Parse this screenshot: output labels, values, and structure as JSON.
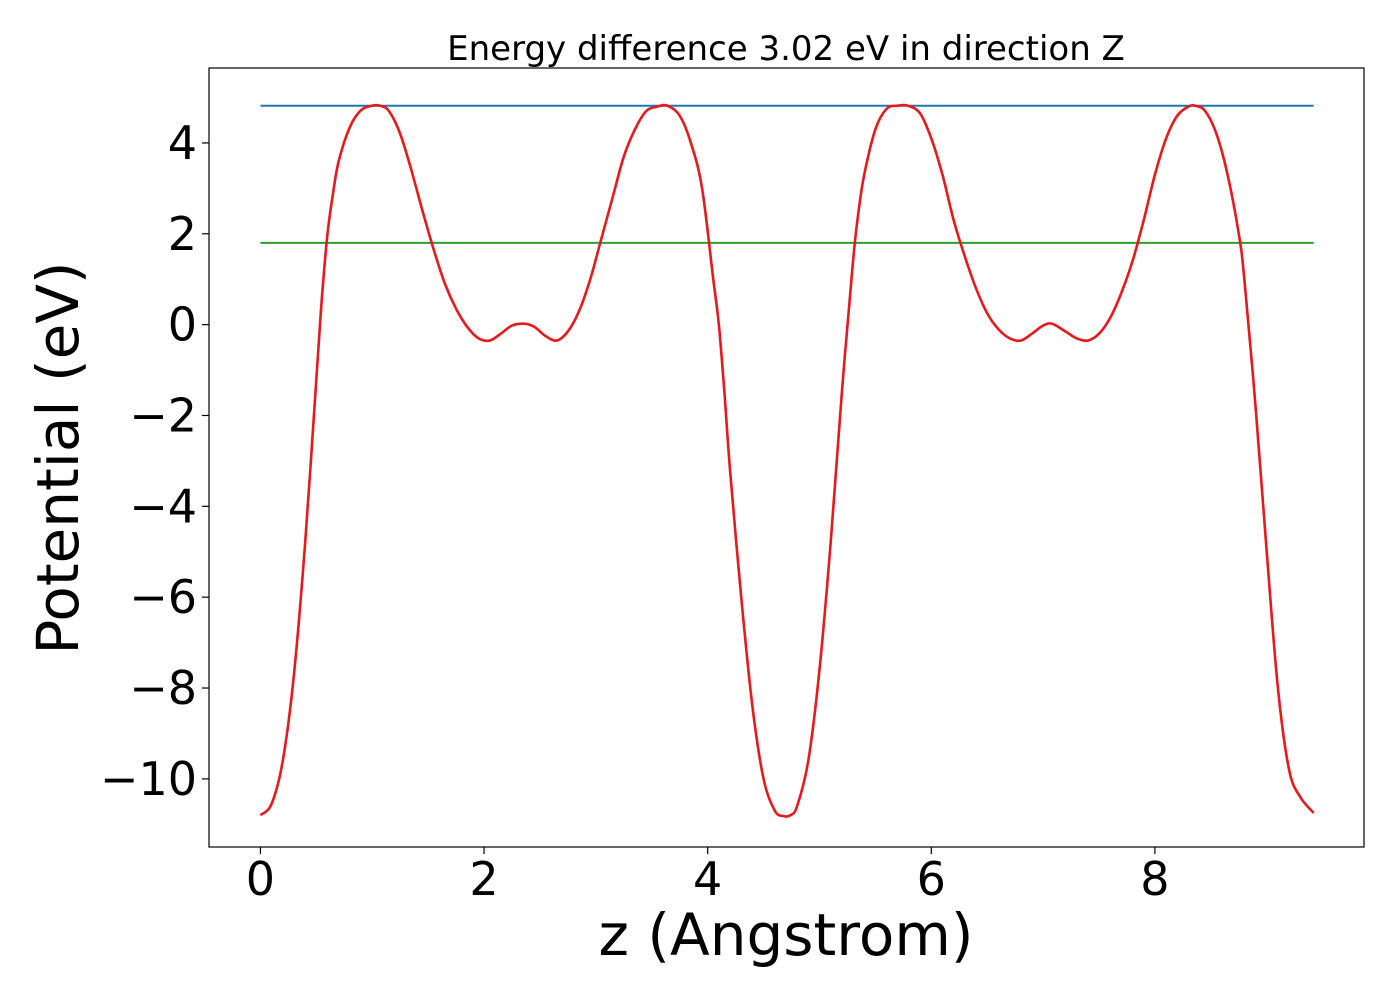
{
  "chart_data": {
    "type": "line",
    "title": "Energy difference 3.02 eV in direction Z",
    "xlabel": "z (Angstrom)",
    "ylabel": "Potential (eV)",
    "xlim": [
      -0.46,
      9.87
    ],
    "ylim": [
      -11.5,
      5.65
    ],
    "xticks": [
      0,
      2,
      4,
      6,
      8
    ],
    "xtick_labels": [
      "0",
      "2",
      "4",
      "6",
      "8"
    ],
    "yticks": [
      4,
      2,
      0,
      -2,
      -4,
      -6,
      -8,
      -10
    ],
    "ytick_labels": [
      "4",
      "2",
      "0",
      "−2",
      "−4",
      "−6",
      "−8",
      "−10"
    ],
    "grid": false,
    "legend": "none",
    "series": [
      {
        "color": "#1f77b4",
        "style": "hline",
        "x": [
          0,
          9.42
        ],
        "y": [
          4.82,
          4.82
        ]
      },
      {
        "color": "#2ca02c",
        "style": "hline",
        "x": [
          0,
          9.42
        ],
        "y": [
          1.8,
          1.8
        ]
      },
      {
        "color": "#e41a1c",
        "style": "curve",
        "x": [
          0.0,
          0.1,
          0.2,
          0.3,
          0.4,
          0.5,
          0.55,
          0.6,
          0.65,
          0.7,
          0.8,
          0.9,
          1.0,
          1.07,
          1.15,
          1.25,
          1.35,
          1.45,
          1.55,
          1.65,
          1.75,
          1.85,
          1.95,
          2.05,
          2.15,
          2.25,
          2.36,
          2.45,
          2.55,
          2.65,
          2.75,
          2.85,
          2.95,
          3.05,
          3.15,
          3.25,
          3.35,
          3.45,
          3.55,
          3.64,
          3.75,
          3.85,
          3.95,
          4.05,
          4.1,
          4.15,
          4.2,
          4.3,
          4.4,
          4.5,
          4.6,
          4.68,
          4.74,
          4.8,
          4.9,
          5.0,
          5.1,
          5.2,
          5.3,
          5.35,
          5.4,
          5.5,
          5.6,
          5.7,
          5.79,
          5.9,
          6.0,
          6.1,
          6.2,
          6.3,
          6.4,
          6.5,
          6.6,
          6.7,
          6.8,
          6.9,
          7.0,
          7.08,
          7.2,
          7.3,
          7.4,
          7.5,
          7.6,
          7.7,
          7.8,
          7.9,
          8.0,
          8.1,
          8.2,
          8.3,
          8.36,
          8.45,
          8.55,
          8.65,
          8.75,
          8.8,
          8.9,
          9.0,
          9.1,
          9.2,
          9.3,
          9.42
        ],
        "y": [
          -10.8,
          -10.55,
          -9.6,
          -7.7,
          -4.8,
          -1.2,
          0.6,
          2.0,
          2.9,
          3.6,
          4.35,
          4.72,
          4.82,
          4.82,
          4.7,
          4.2,
          3.4,
          2.5,
          1.65,
          0.9,
          0.35,
          -0.05,
          -0.3,
          -0.35,
          -0.2,
          -0.02,
          0.02,
          -0.05,
          -0.25,
          -0.35,
          -0.15,
          0.3,
          1.0,
          1.9,
          2.8,
          3.7,
          4.3,
          4.7,
          4.8,
          4.82,
          4.6,
          4.0,
          3.0,
          1.0,
          0.0,
          -1.5,
          -3.2,
          -6.0,
          -8.4,
          -10.0,
          -10.7,
          -10.82,
          -10.8,
          -10.6,
          -9.6,
          -7.6,
          -4.8,
          -1.5,
          1.4,
          2.5,
          3.3,
          4.3,
          4.75,
          4.82,
          4.82,
          4.65,
          4.1,
          3.3,
          2.3,
          1.5,
          0.8,
          0.25,
          -0.1,
          -0.3,
          -0.35,
          -0.2,
          -0.02,
          0.02,
          -0.15,
          -0.3,
          -0.35,
          -0.2,
          0.15,
          0.7,
          1.4,
          2.3,
          3.3,
          4.1,
          4.6,
          4.8,
          4.82,
          4.7,
          4.2,
          3.3,
          2.0,
          1.0,
          -1.8,
          -5.0,
          -8.0,
          -9.8,
          -10.4,
          -10.75
        ]
      }
    ]
  }
}
